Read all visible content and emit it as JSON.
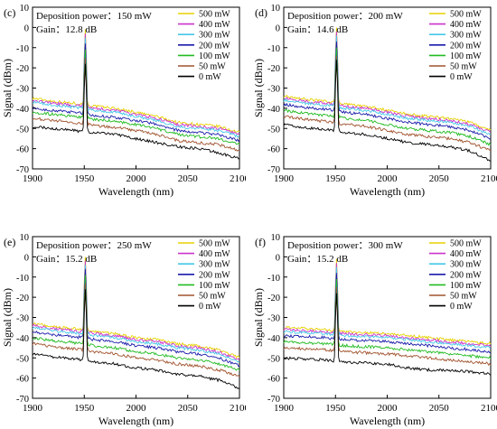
{
  "chart_data": [
    {
      "type": "line",
      "panel_label": "(c)",
      "annotations": [
        "Deposition power：150 mW",
        "Gain：12.8 dB"
      ],
      "xlabel": "Wavelength (nm)",
      "ylabel": "Signal (dBm)",
      "xlim": [
        1900,
        2100
      ],
      "ylim": [
        -70,
        10
      ],
      "xticks": [
        1900,
        1950,
        2000,
        2050,
        2100
      ],
      "yticks": [
        10,
        0,
        -10,
        -20,
        -30,
        -40,
        -50,
        -60,
        -70
      ],
      "legend_position": "top-right",
      "series": [
        {
          "name": "500 mW",
          "color": "#e6d200",
          "peak": -1,
          "x": [
            1900,
            1920,
            1940,
            1948,
            1960,
            1980,
            2000,
            2020,
            2040,
            2060,
            2080,
            2100
          ],
          "y": [
            -35,
            -36.5,
            -37.5,
            -38,
            -39,
            -40,
            -42,
            -44,
            -47,
            -48,
            -49,
            -52
          ]
        },
        {
          "name": "400 mW",
          "color": "#cc33cc",
          "peak": -3,
          "x": [
            1900,
            1920,
            1940,
            1948,
            1960,
            1980,
            2000,
            2020,
            2040,
            2060,
            2080,
            2100
          ],
          "y": [
            -36,
            -37.5,
            -38.5,
            -39,
            -40,
            -41,
            -43,
            -45,
            -48,
            -49,
            -50,
            -53
          ]
        },
        {
          "name": "300 mW",
          "color": "#44c8e8",
          "peak": -5,
          "x": [
            1900,
            1920,
            1940,
            1948,
            1960,
            1980,
            2000,
            2020,
            2040,
            2060,
            2080,
            2100
          ],
          "y": [
            -37,
            -38.5,
            -39.5,
            -40,
            -41,
            -42,
            -44,
            -46,
            -49,
            -50,
            -51,
            -54
          ]
        },
        {
          "name": "200 mW",
          "color": "#1a1aaa",
          "peak": -8,
          "x": [
            1900,
            1920,
            1940,
            1948,
            1960,
            1980,
            2000,
            2020,
            2040,
            2060,
            2080,
            2100
          ],
          "y": [
            -40,
            -41,
            -42,
            -42.5,
            -43.5,
            -44.5,
            -46,
            -48,
            -51,
            -52,
            -53,
            -56
          ]
        },
        {
          "name": "100 mW",
          "color": "#22bb22",
          "peak": -11,
          "x": [
            1900,
            1920,
            1940,
            1948,
            1960,
            1980,
            2000,
            2020,
            2040,
            2060,
            2080,
            2100
          ],
          "y": [
            -42,
            -43,
            -44,
            -44.5,
            -45.5,
            -46.5,
            -48,
            -50,
            -53,
            -54,
            -55,
            -58
          ]
        },
        {
          "name": "50 mW",
          "color": "#a0522d",
          "peak": -15,
          "x": [
            1900,
            1920,
            1940,
            1948,
            1960,
            1980,
            2000,
            2020,
            2040,
            2060,
            2080,
            2100
          ],
          "y": [
            -45,
            -46,
            -47,
            -47.5,
            -48.5,
            -49.5,
            -51,
            -53,
            -56,
            -57,
            -58,
            -61
          ]
        },
        {
          "name": "0 mW",
          "color": "#000000",
          "peak": -18,
          "x": [
            1900,
            1920,
            1940,
            1948,
            1960,
            1980,
            2000,
            2020,
            2040,
            2060,
            2080,
            2100
          ],
          "y": [
            -49,
            -50,
            -51,
            -51.5,
            -52,
            -53,
            -55,
            -57,
            -59,
            -60,
            -62,
            -65
          ]
        }
      ]
    },
    {
      "type": "line",
      "panel_label": "(d)",
      "annotations": [
        "Deposition power：200 mW",
        "Gain：14.6 dB"
      ],
      "xlabel": "Wavelength (nm)",
      "ylabel": "Signal (dBm)",
      "xlim": [
        1900,
        2100
      ],
      "ylim": [
        -70,
        10
      ],
      "xticks": [
        1900,
        1950,
        2000,
        2050,
        2100
      ],
      "yticks": [
        10,
        0,
        -10,
        -20,
        -30,
        -40,
        -50,
        -60,
        -70
      ],
      "legend_position": "top-right",
      "series": [
        {
          "name": "500 mW",
          "color": "#e6d200",
          "peak": 0,
          "x": [
            1900,
            1920,
            1940,
            1948,
            1960,
            1980,
            2000,
            2020,
            2040,
            2060,
            2080,
            2100
          ],
          "y": [
            -34,
            -35.5,
            -36.5,
            -37,
            -38,
            -39,
            -41,
            -43,
            -44,
            -45,
            -47,
            -51
          ]
        },
        {
          "name": "400 mW",
          "color": "#cc33cc",
          "peak": -2,
          "x": [
            1900,
            1920,
            1940,
            1948,
            1960,
            1980,
            2000,
            2020,
            2040,
            2060,
            2080,
            2100
          ],
          "y": [
            -35,
            -36.5,
            -37.5,
            -38,
            -39,
            -40,
            -42,
            -44,
            -45,
            -46,
            -48,
            -52
          ]
        },
        {
          "name": "300 mW",
          "color": "#44c8e8",
          "peak": -4,
          "x": [
            1900,
            1920,
            1940,
            1948,
            1960,
            1980,
            2000,
            2020,
            2040,
            2060,
            2080,
            2100
          ],
          "y": [
            -36,
            -37.5,
            -38.5,
            -39,
            -40,
            -41,
            -43,
            -45,
            -46,
            -47,
            -49,
            -53
          ]
        },
        {
          "name": "200 mW",
          "color": "#1a1aaa",
          "peak": -7,
          "x": [
            1900,
            1920,
            1940,
            1948,
            1960,
            1980,
            2000,
            2020,
            2040,
            2060,
            2080,
            2100
          ],
          "y": [
            -38,
            -39.5,
            -40.5,
            -41,
            -42,
            -43,
            -45,
            -47,
            -48,
            -49,
            -51,
            -55
          ]
        },
        {
          "name": "100 mW",
          "color": "#22bb22",
          "peak": -10,
          "x": [
            1900,
            1920,
            1940,
            1948,
            1960,
            1980,
            2000,
            2020,
            2040,
            2060,
            2080,
            2100
          ],
          "y": [
            -41,
            -42.5,
            -43.5,
            -44,
            -45,
            -46,
            -48,
            -50,
            -51,
            -52,
            -54,
            -58
          ]
        },
        {
          "name": "50 mW",
          "color": "#a0522d",
          "peak": -14,
          "x": [
            1900,
            1920,
            1940,
            1948,
            1960,
            1980,
            2000,
            2020,
            2040,
            2060,
            2080,
            2100
          ],
          "y": [
            -44,
            -45.5,
            -46.5,
            -47,
            -48,
            -49,
            -51,
            -53,
            -54,
            -55,
            -57,
            -61
          ]
        },
        {
          "name": "0 mW",
          "color": "#000000",
          "peak": -16,
          "x": [
            1900,
            1920,
            1940,
            1948,
            1960,
            1980,
            2000,
            2020,
            2040,
            2060,
            2080,
            2100
          ],
          "y": [
            -48,
            -49.5,
            -50.5,
            -51,
            -52,
            -53,
            -55,
            -57,
            -58,
            -59,
            -61,
            -66
          ]
        }
      ]
    },
    {
      "type": "line",
      "panel_label": "(e)",
      "annotations": [
        "Deposition power：250 mW",
        "Gain：15.2 dB"
      ],
      "xlabel": "Wavelength (nm)",
      "ylabel": "Signal (dBm)",
      "xlim": [
        1900,
        2100
      ],
      "ylim": [
        -70,
        10
      ],
      "xticks": [
        1900,
        1950,
        2000,
        2050,
        2100
      ],
      "yticks": [
        10,
        0,
        -10,
        -20,
        -30,
        -40,
        -50,
        -60,
        -70
      ],
      "legend_position": "top-right",
      "series": [
        {
          "name": "500 mW",
          "color": "#e6d200",
          "peak": 0,
          "x": [
            1900,
            1920,
            1940,
            1948,
            1960,
            1980,
            2000,
            2020,
            2040,
            2060,
            2080,
            2100
          ],
          "y": [
            -33,
            -34.5,
            -35.5,
            -36,
            -37,
            -38,
            -40,
            -41,
            -43,
            -44,
            -46,
            -50
          ]
        },
        {
          "name": "400 mW",
          "color": "#cc33cc",
          "peak": -2,
          "x": [
            1900,
            1920,
            1940,
            1948,
            1960,
            1980,
            2000,
            2020,
            2040,
            2060,
            2080,
            2100
          ],
          "y": [
            -34,
            -35.5,
            -36.5,
            -37,
            -38,
            -39,
            -41,
            -42,
            -44,
            -45,
            -47,
            -51
          ]
        },
        {
          "name": "300 mW",
          "color": "#44c8e8",
          "peak": -4,
          "x": [
            1900,
            1920,
            1940,
            1948,
            1960,
            1980,
            2000,
            2020,
            2040,
            2060,
            2080,
            2100
          ],
          "y": [
            -35,
            -36.5,
            -37.5,
            -38,
            -39,
            -40,
            -42,
            -43,
            -45,
            -46,
            -48,
            -52
          ]
        },
        {
          "name": "200 mW",
          "color": "#1a1aaa",
          "peak": -6,
          "x": [
            1900,
            1920,
            1940,
            1948,
            1960,
            1980,
            2000,
            2020,
            2040,
            2060,
            2080,
            2100
          ],
          "y": [
            -37,
            -38.5,
            -39.5,
            -40,
            -41,
            -42,
            -44,
            -45,
            -47,
            -48,
            -50,
            -54
          ]
        },
        {
          "name": "100 mW",
          "color": "#22bb22",
          "peak": -9,
          "x": [
            1900,
            1920,
            1940,
            1948,
            1960,
            1980,
            2000,
            2020,
            2040,
            2060,
            2080,
            2100
          ],
          "y": [
            -40,
            -41.5,
            -42.5,
            -43,
            -44,
            -45,
            -47,
            -48,
            -50,
            -51,
            -53,
            -56
          ]
        },
        {
          "name": "50 mW",
          "color": "#a0522d",
          "peak": -13,
          "x": [
            1900,
            1920,
            1940,
            1948,
            1960,
            1980,
            2000,
            2020,
            2040,
            2060,
            2080,
            2100
          ],
          "y": [
            -43,
            -44.5,
            -45.5,
            -46,
            -47,
            -48,
            -50,
            -51,
            -53,
            -54,
            -56,
            -59
          ]
        },
        {
          "name": "0 mW",
          "color": "#000000",
          "peak": -16,
          "x": [
            1900,
            1920,
            1940,
            1948,
            1960,
            1980,
            2000,
            2020,
            2040,
            2060,
            2080,
            2100
          ],
          "y": [
            -48,
            -49.5,
            -50.5,
            -51,
            -52,
            -53,
            -55,
            -56,
            -58,
            -59,
            -61,
            -65
          ]
        }
      ]
    },
    {
      "type": "line",
      "panel_label": "(f)",
      "annotations": [
        "Deposition power：300 mW",
        "Gain：15.2 dB"
      ],
      "xlabel": "Wavelength (nm)",
      "ylabel": "Signal (dBm)",
      "xlim": [
        1900,
        2100
      ],
      "ylim": [
        -70,
        10
      ],
      "xticks": [
        1900,
        1950,
        2000,
        2050,
        2100
      ],
      "yticks": [
        10,
        0,
        -10,
        -20,
        -30,
        -40,
        -50,
        -60,
        -70
      ],
      "legend_position": "top-right",
      "series": [
        {
          "name": "500 mW",
          "color": "#e6d200",
          "peak": -1,
          "x": [
            1900,
            1920,
            1940,
            1948,
            1960,
            1980,
            2000,
            2020,
            2040,
            2060,
            2080,
            2100
          ],
          "y": [
            -35,
            -35.5,
            -36,
            -36.5,
            -37,
            -37.5,
            -38,
            -39,
            -40,
            -41,
            -42,
            -43
          ]
        },
        {
          "name": "400 mW",
          "color": "#cc33cc",
          "peak": -3,
          "x": [
            1900,
            1920,
            1940,
            1948,
            1960,
            1980,
            2000,
            2020,
            2040,
            2060,
            2080,
            2100
          ],
          "y": [
            -36,
            -36.5,
            -37,
            -37.5,
            -38,
            -38.5,
            -39,
            -40,
            -41,
            -42,
            -43,
            -44
          ]
        },
        {
          "name": "300 mW",
          "color": "#44c8e8",
          "peak": -5,
          "x": [
            1900,
            1920,
            1940,
            1948,
            1960,
            1980,
            2000,
            2020,
            2040,
            2060,
            2080,
            2100
          ],
          "y": [
            -37,
            -37.5,
            -38,
            -38.5,
            -39,
            -39.5,
            -40,
            -41,
            -42,
            -43,
            -44,
            -45
          ]
        },
        {
          "name": "200 mW",
          "color": "#1a1aaa",
          "peak": -8,
          "x": [
            1900,
            1920,
            1940,
            1948,
            1960,
            1980,
            2000,
            2020,
            2040,
            2060,
            2080,
            2100
          ],
          "y": [
            -39,
            -39.5,
            -40,
            -40.5,
            -41,
            -41.5,
            -42,
            -43,
            -44,
            -45,
            -46,
            -47
          ]
        },
        {
          "name": "100 mW",
          "color": "#22bb22",
          "peak": -11,
          "x": [
            1900,
            1920,
            1940,
            1948,
            1960,
            1980,
            2000,
            2020,
            2040,
            2060,
            2080,
            2100
          ],
          "y": [
            -42,
            -42.5,
            -43,
            -43.5,
            -44,
            -44.5,
            -45,
            -46,
            -47,
            -48,
            -49,
            -50
          ]
        },
        {
          "name": "50 mW",
          "color": "#a0522d",
          "peak": -15,
          "x": [
            1900,
            1920,
            1940,
            1948,
            1960,
            1980,
            2000,
            2020,
            2040,
            2060,
            2080,
            2100
          ],
          "y": [
            -45,
            -45.5,
            -46,
            -46.5,
            -47,
            -47.5,
            -48,
            -49,
            -50,
            -51,
            -52,
            -53
          ]
        },
        {
          "name": "0 mW",
          "color": "#000000",
          "peak": -18,
          "x": [
            1900,
            1920,
            1940,
            1948,
            1960,
            1980,
            2000,
            2020,
            2040,
            2060,
            2080,
            2100
          ],
          "y": [
            -50,
            -50.5,
            -51,
            -51.5,
            -52,
            -52.5,
            -53,
            -55,
            -56,
            -56,
            -57,
            -58
          ]
        }
      ]
    }
  ]
}
